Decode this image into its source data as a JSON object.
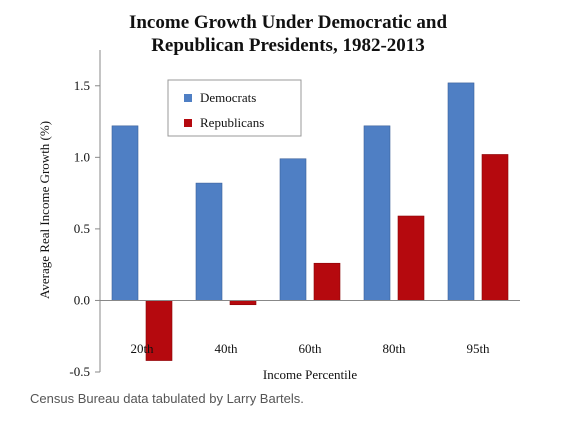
{
  "chart_data": {
    "type": "bar",
    "title": [
      "Income Growth Under Democratic and",
      "Republican Presidents, 1982-2013"
    ],
    "xlabel": "Income Percentile",
    "ylabel": "Average Real Income Growth (%)",
    "categories": [
      "20th",
      "40th",
      "60th",
      "80th",
      "95th"
    ],
    "series": [
      {
        "name": "Democrats",
        "color": "#4f7fc4",
        "values": [
          1.22,
          0.82,
          0.99,
          1.22,
          1.52
        ]
      },
      {
        "name": "Republicans",
        "color": "#b5090e",
        "values": [
          -0.42,
          -0.03,
          0.26,
          0.59,
          1.02
        ]
      }
    ],
    "ylim": [
      -0.5,
      1.75
    ],
    "yticks": [
      "-0.5",
      "0.0",
      "0.5",
      "1.0",
      "1.5"
    ],
    "legend_position": "top-left",
    "grid": false
  },
  "caption": "Census Bureau data tabulated by Larry Bartels."
}
